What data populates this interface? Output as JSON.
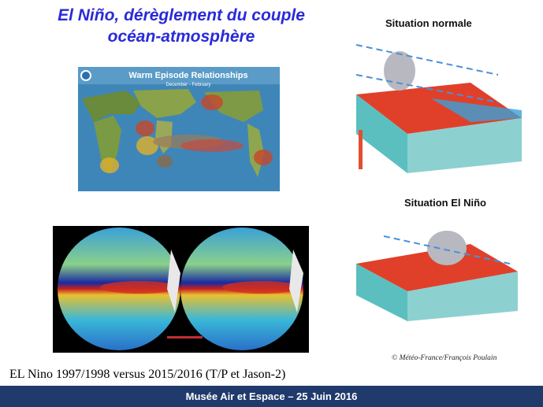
{
  "slide": {
    "title": [
      "El Niño, dérèglement du  couple",
      "océan-atmosphère"
    ],
    "map": {
      "title": "Warm Episode Relationships",
      "subtitle": "December - February"
    },
    "diagram_normal": {
      "title": "Situation normale"
    },
    "diagram_nino": {
      "title": "Situation El Niño"
    },
    "credit": "© Météo-France/François Poulain",
    "caption": "EL Nino 1997/1998 versus 2015/2016 (T/P et Jason-2)",
    "footer": "Musée Air et Espace – 25 Juin 2016"
  }
}
